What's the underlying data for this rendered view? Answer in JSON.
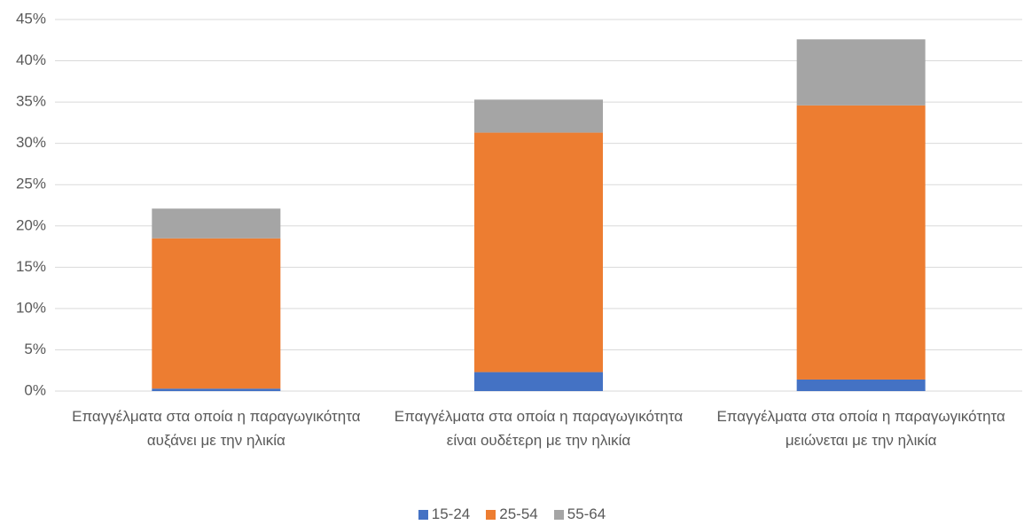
{
  "chart_data": {
    "type": "stacked_bar",
    "categories": [
      "Επαγγέλματα στα οποία η παραγωγικότητα αυξάνει με την ηλικία",
      "Επαγγέλματα στα οποία η παραγωγικότητα είναι ουδέτερη με την ηλικία",
      "Επαγγέλματα στα οποία η παραγωγικότητα μειώνεται με την ηλικία"
    ],
    "series": [
      {
        "name": "15-24",
        "color": "#4472c4",
        "values": [
          0.3,
          2.3,
          1.4
        ]
      },
      {
        "name": "25-54",
        "color": "#ed7d31",
        "values": [
          18.2,
          29.0,
          33.2
        ]
      },
      {
        "name": "55-64",
        "color": "#a5a5a5",
        "values": [
          3.6,
          4.0,
          8.0
        ]
      }
    ],
    "ylim": [
      0,
      45
    ],
    "yticks": [
      {
        "value": 0,
        "label": "0%"
      },
      {
        "value": 5,
        "label": "5%"
      },
      {
        "value": 10,
        "label": "10%"
      },
      {
        "value": 15,
        "label": "15%"
      },
      {
        "value": 20,
        "label": "20%"
      },
      {
        "value": 25,
        "label": "25%"
      },
      {
        "value": 30,
        "label": "30%"
      },
      {
        "value": 35,
        "label": "35%"
      },
      {
        "value": 40,
        "label": "40%"
      },
      {
        "value": 45,
        "label": "45%"
      }
    ],
    "grid": true,
    "legend": "bottom"
  }
}
